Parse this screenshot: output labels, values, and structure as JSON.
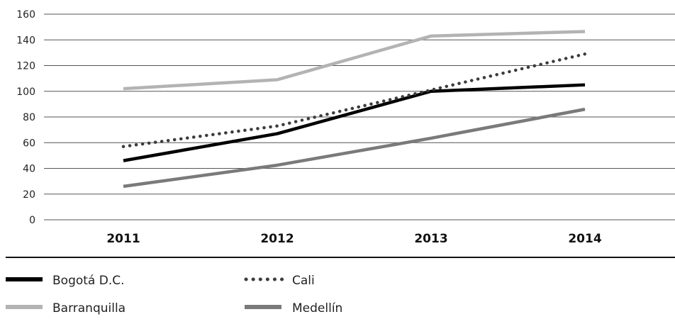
{
  "chart_data": {
    "type": "line",
    "title": "",
    "xlabel": "",
    "ylabel": "",
    "categories": [
      "2011",
      "2012",
      "2013",
      "2014"
    ],
    "ylim": [
      0,
      160
    ],
    "yticks": [
      0,
      20,
      40,
      60,
      80,
      100,
      120,
      140,
      160
    ],
    "grid": true,
    "legend_position": "bottom",
    "series": [
      {
        "name": "Bogotá D.C.",
        "values": [
          46,
          67,
          100,
          105
        ],
        "color": "#000000",
        "style": "solid"
      },
      {
        "name": "Cali",
        "values": [
          57,
          73,
          101,
          129
        ],
        "color": "#3c3c3c",
        "style": "dotted"
      },
      {
        "name": "Barranquilla",
        "values": [
          102,
          109,
          143,
          146.5
        ],
        "color": "#b3b3b3",
        "style": "solid"
      },
      {
        "name": "Medellín",
        "values": [
          26,
          42.5,
          63.5,
          86
        ],
        "color": "#7a7a7a",
        "style": "solid"
      }
    ]
  }
}
